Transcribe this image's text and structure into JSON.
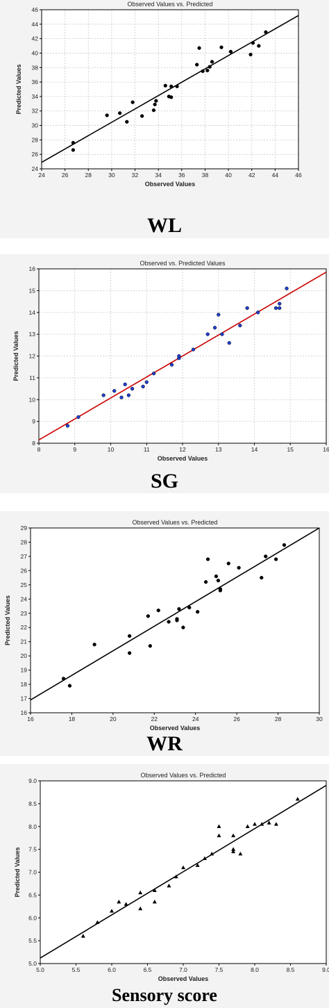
{
  "chart_data": [
    {
      "type": "scatter",
      "title": "Observed Values vs. Predicted",
      "xlabel": "Observed Values",
      "ylabel": "Predicted Values",
      "caption": "WL",
      "xlim": [
        24,
        46
      ],
      "ylim": [
        24,
        46
      ],
      "xticks": [
        "24",
        "26",
        "28",
        "30",
        "32",
        "34",
        "36",
        "38",
        "40",
        "42",
        "44",
        "46"
      ],
      "yticks": [
        "24",
        "26",
        "28",
        "30",
        "32",
        "34",
        "36",
        "38",
        "40",
        "42",
        "44",
        "46"
      ],
      "grid": true,
      "grid_color": "#c8c8c8",
      "line_color": "#000000",
      "marker": "circle",
      "marker_color": "#000000",
      "fit_line": [
        [
          24,
          24.9
        ],
        [
          46,
          45.2
        ]
      ],
      "points": [
        [
          26.7,
          27.6
        ],
        [
          26.7,
          26.6
        ],
        [
          29.6,
          31.4
        ],
        [
          30.7,
          31.7
        ],
        [
          31.3,
          30.5
        ],
        [
          31.8,
          33.2
        ],
        [
          32.6,
          31.3
        ],
        [
          33.6,
          32.1
        ],
        [
          33.7,
          32.9
        ],
        [
          33.8,
          33.4
        ],
        [
          34.6,
          35.5
        ],
        [
          34.9,
          34.0
        ],
        [
          35.1,
          35.4
        ],
        [
          35.1,
          33.9
        ],
        [
          35.6,
          35.4
        ],
        [
          37.3,
          38.4
        ],
        [
          37.5,
          40.7
        ],
        [
          37.8,
          37.5
        ],
        [
          38.2,
          37.6
        ],
        [
          38.4,
          38.1
        ],
        [
          38.6,
          38.8
        ],
        [
          39.4,
          40.8
        ],
        [
          40.2,
          40.2
        ],
        [
          41.9,
          39.8
        ],
        [
          42.1,
          41.4
        ],
        [
          42.6,
          41.0
        ],
        [
          43.2,
          42.9
        ]
      ]
    },
    {
      "type": "scatter",
      "title": "Observed vs. Predicted Values",
      "xlabel": "Observed Values",
      "ylabel": "Predicted Values",
      "caption": "SG",
      "xlim": [
        8,
        16
      ],
      "ylim": [
        8,
        16
      ],
      "xticks": [
        "8",
        "9",
        "10",
        "11",
        "12",
        "13",
        "14",
        "15",
        "16"
      ],
      "yticks": [
        "8",
        "9",
        "10",
        "11",
        "12",
        "13",
        "14",
        "15",
        "16"
      ],
      "grid": true,
      "grid_color": "#c8c8c8",
      "line_color": "#cc0000",
      "marker": "circle",
      "marker_color": "#1f3fd0",
      "fit_line": [
        [
          8,
          8.15
        ],
        [
          16,
          15.85
        ]
      ],
      "points": [
        [
          8.8,
          8.8
        ],
        [
          9.1,
          9.2
        ],
        [
          9.8,
          10.2
        ],
        [
          10.1,
          10.4
        ],
        [
          10.3,
          10.1
        ],
        [
          10.4,
          10.7
        ],
        [
          10.5,
          10.2
        ],
        [
          10.6,
          10.5
        ],
        [
          10.9,
          10.6
        ],
        [
          11.0,
          10.8
        ],
        [
          11.2,
          11.2
        ],
        [
          11.7,
          11.6
        ],
        [
          11.9,
          11.9
        ],
        [
          11.9,
          12.0
        ],
        [
          12.3,
          12.3
        ],
        [
          12.7,
          13.0
        ],
        [
          12.9,
          13.3
        ],
        [
          13.0,
          13.9
        ],
        [
          13.1,
          13.0
        ],
        [
          13.3,
          12.6
        ],
        [
          13.6,
          13.4
        ],
        [
          13.8,
          14.2
        ],
        [
          14.1,
          14.0
        ],
        [
          14.6,
          14.2
        ],
        [
          14.7,
          14.4
        ],
        [
          14.7,
          14.2
        ],
        [
          14.9,
          15.1
        ]
      ]
    },
    {
      "type": "scatter",
      "title": "Observed Values vs. Predicted",
      "xlabel": "Observed Values",
      "ylabel": "Predicted Values",
      "caption": "WR",
      "xlim": [
        16,
        30
      ],
      "ylim": [
        16,
        29
      ],
      "xticks": [
        "16",
        "18",
        "20",
        "22",
        "24",
        "26",
        "28",
        "30"
      ],
      "yticks": [
        "16",
        "17",
        "18",
        "19",
        "20",
        "21",
        "22",
        "23",
        "24",
        "25",
        "26",
        "27",
        "28",
        "29"
      ],
      "grid": false,
      "line_color": "#000000",
      "marker": "circle",
      "marker_color": "#000000",
      "fit_line": [
        [
          16,
          16.9
        ],
        [
          30,
          29.0
        ]
      ],
      "points": [
        [
          17.6,
          18.4
        ],
        [
          17.9,
          17.9
        ],
        [
          19.1,
          20.8
        ],
        [
          20.8,
          21.4
        ],
        [
          20.8,
          20.2
        ],
        [
          21.7,
          22.8
        ],
        [
          21.8,
          20.7
        ],
        [
          22.2,
          23.2
        ],
        [
          22.7,
          22.4
        ],
        [
          23.1,
          22.5
        ],
        [
          23.1,
          22.6
        ],
        [
          23.2,
          23.3
        ],
        [
          23.4,
          22.0
        ],
        [
          23.7,
          23.4
        ],
        [
          24.1,
          23.1
        ],
        [
          24.5,
          25.2
        ],
        [
          24.6,
          26.8
        ],
        [
          25.0,
          25.6
        ],
        [
          25.1,
          25.3
        ],
        [
          25.2,
          24.6
        ],
        [
          25.2,
          24.7
        ],
        [
          25.6,
          26.5
        ],
        [
          26.1,
          26.2
        ],
        [
          27.2,
          25.5
        ],
        [
          27.4,
          27.0
        ],
        [
          27.9,
          26.8
        ],
        [
          28.3,
          27.8
        ]
      ]
    },
    {
      "type": "scatter",
      "title": "Observed Values vs. Predicted",
      "xlabel": "Observed Values",
      "ylabel": "Predicted Values",
      "caption": "Sensory score",
      "xlim": [
        5.0,
        9.0
      ],
      "ylim": [
        5.0,
        9.0
      ],
      "xticks": [
        "5.0",
        "5.5",
        "6.0",
        "6.5",
        "7.0",
        "7.5",
        "8.0",
        "8.5",
        "9.0"
      ],
      "yticks": [
        "5.0",
        "5.5",
        "6.0",
        "6.5",
        "7.0",
        "7.5",
        "8.0",
        "8.5",
        "9.0"
      ],
      "grid": false,
      "line_color": "#000000",
      "marker": "triangle",
      "marker_color": "#000000",
      "fit_line": [
        [
          5.0,
          5.12
        ],
        [
          9.0,
          8.9
        ]
      ],
      "points": [
        [
          5.6,
          5.6
        ],
        [
          5.8,
          5.9
        ],
        [
          6.0,
          6.15
        ],
        [
          6.1,
          6.35
        ],
        [
          6.2,
          6.3
        ],
        [
          6.4,
          6.55
        ],
        [
          6.4,
          6.2
        ],
        [
          6.6,
          6.6
        ],
        [
          6.6,
          6.35
        ],
        [
          6.8,
          6.7
        ],
        [
          6.9,
          6.9
        ],
        [
          7.0,
          7.1
        ],
        [
          7.2,
          7.15
        ],
        [
          7.3,
          7.3
        ],
        [
          7.4,
          7.4
        ],
        [
          7.5,
          8.0
        ],
        [
          7.5,
          7.8
        ],
        [
          7.7,
          7.5
        ],
        [
          7.7,
          7.45
        ],
        [
          7.7,
          7.8
        ],
        [
          7.8,
          7.4
        ],
        [
          7.9,
          8.0
        ],
        [
          8.0,
          8.05
        ],
        [
          8.1,
          8.05
        ],
        [
          8.2,
          8.08
        ],
        [
          8.3,
          8.05
        ],
        [
          8.6,
          8.6
        ]
      ]
    }
  ]
}
